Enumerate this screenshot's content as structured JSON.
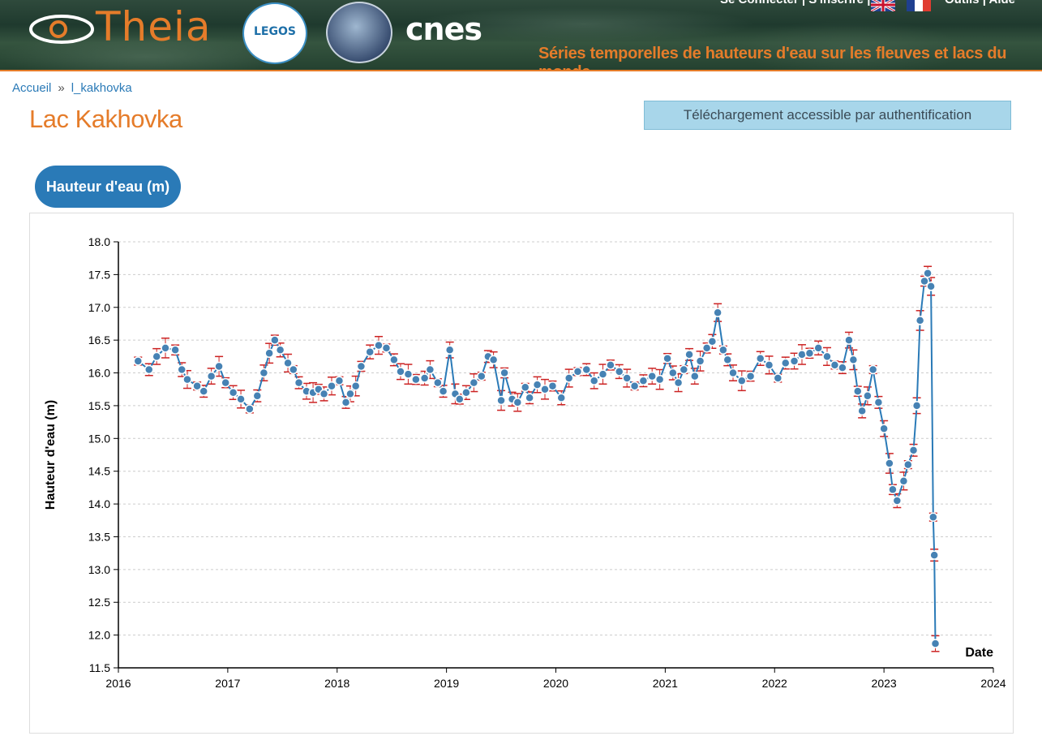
{
  "header": {
    "logo_text": "Theia",
    "partner_logo_legos": "LEGOS",
    "partner_logo_cnes": "cnes",
    "nav": {
      "login": "Se Connecter",
      "separator1": "|",
      "register": "S'inscrire",
      "separator2": "|",
      "tools": "Outils",
      "separator3": "|",
      "help": "Aide"
    },
    "subtitle": "Séries temporelles de hauteurs d'eau sur les fleuves et lacs du monde",
    "accent_color": "#e57c2a"
  },
  "breadcrumb": {
    "home": "Accueil",
    "separator": "»",
    "current": "l_kakhovka"
  },
  "page": {
    "title": "Lac Kakhovka",
    "download_label": "Téléchargement accessible par authentification",
    "tab_label": "Hauteur d'eau (m)"
  },
  "chart_data": {
    "type": "line",
    "title": "",
    "xlabel": "Date",
    "ylabel": "Hauteur d'eau (m)",
    "xlim": [
      2016,
      2024
    ],
    "ylim": [
      11.5,
      18.0
    ],
    "x_ticks": [
      "2016",
      "2017",
      "2018",
      "2019",
      "2020",
      "2021",
      "2022",
      "2023",
      "2024"
    ],
    "y_ticks": [
      "11.5",
      "12.0",
      "12.5",
      "13.0",
      "13.5",
      "14.0",
      "14.5",
      "15.0",
      "15.5",
      "16.0",
      "16.5",
      "17.0",
      "17.5",
      "18.0"
    ],
    "grid": true,
    "error_bars": true,
    "line_color": "#2a7ab7",
    "point_color": "#4682b4",
    "error_color": "#cc2222",
    "series": [
      {
        "name": "Hauteur d'eau (m)",
        "x": [
          2016.18,
          2016.28,
          2016.35,
          2016.43,
          2016.52,
          2016.58,
          2016.63,
          2016.72,
          2016.78,
          2016.85,
          2016.92,
          2016.98,
          2017.05,
          2017.12,
          2017.2,
          2017.27,
          2017.33,
          2017.38,
          2017.43,
          2017.48,
          2017.55,
          2017.6,
          2017.65,
          2017.72,
          2017.78,
          2017.83,
          2017.88,
          2017.95,
          2018.02,
          2018.08,
          2018.12,
          2018.17,
          2018.22,
          2018.3,
          2018.38,
          2018.45,
          2018.52,
          2018.58,
          2018.65,
          2018.72,
          2018.8,
          2018.85,
          2018.92,
          2018.97,
          2019.03,
          2019.08,
          2019.12,
          2019.18,
          2019.25,
          2019.32,
          2019.38,
          2019.43,
          2019.5,
          2019.53,
          2019.6,
          2019.65,
          2019.72,
          2019.76,
          2019.83,
          2019.9,
          2019.97,
          2020.05,
          2020.12,
          2020.2,
          2020.28,
          2020.35,
          2020.43,
          2020.5,
          2020.58,
          2020.65,
          2020.72,
          2020.8,
          2020.88,
          2020.95,
          2021.02,
          2021.07,
          2021.12,
          2021.17,
          2021.22,
          2021.27,
          2021.32,
          2021.38,
          2021.43,
          2021.48,
          2021.53,
          2021.57,
          2021.62,
          2021.7,
          2021.78,
          2021.87,
          2021.95,
          2022.03,
          2022.1,
          2022.18,
          2022.25,
          2022.32,
          2022.4,
          2022.48,
          2022.55,
          2022.62,
          2022.68,
          2022.72,
          2022.76,
          2022.8,
          2022.85,
          2022.9,
          2022.95,
          2023.0,
          2023.05,
          2023.08,
          2023.12,
          2023.18,
          2023.22,
          2023.27,
          2023.3,
          2023.33,
          2023.37,
          2023.4,
          2023.43,
          2023.45,
          2023.46,
          2023.47
        ],
        "values": [
          16.18,
          16.05,
          16.25,
          16.38,
          16.35,
          16.05,
          15.9,
          15.8,
          15.72,
          15.95,
          16.1,
          15.85,
          15.7,
          15.6,
          15.45,
          15.65,
          16.0,
          16.3,
          16.5,
          16.35,
          16.15,
          16.05,
          15.85,
          15.72,
          15.7,
          15.75,
          15.68,
          15.8,
          15.88,
          15.55,
          15.68,
          15.8,
          16.1,
          16.32,
          16.42,
          16.38,
          16.2,
          16.02,
          15.98,
          15.9,
          15.92,
          16.05,
          15.85,
          15.72,
          16.35,
          15.68,
          15.6,
          15.7,
          15.85,
          15.95,
          16.25,
          16.2,
          15.58,
          16.0,
          15.6,
          15.55,
          15.78,
          15.62,
          15.82,
          15.75,
          15.8,
          15.62,
          15.92,
          16.02,
          16.05,
          15.88,
          15.98,
          16.12,
          16.02,
          15.92,
          15.8,
          15.88,
          15.95,
          15.9,
          16.22,
          16.0,
          15.85,
          16.05,
          16.28,
          15.95,
          16.18,
          16.38,
          16.48,
          16.92,
          16.35,
          16.2,
          16.0,
          15.88,
          15.95,
          16.22,
          16.12,
          15.92,
          16.15,
          16.18,
          16.28,
          16.3,
          16.38,
          16.25,
          16.12,
          16.08,
          16.5,
          16.2,
          15.72,
          15.42,
          15.65,
          16.05,
          15.55,
          15.15,
          14.62,
          14.22,
          14.05,
          14.35,
          14.6,
          14.82,
          15.5,
          16.8,
          17.4,
          17.52,
          17.32,
          13.8,
          13.22,
          11.87
        ]
      }
    ]
  }
}
